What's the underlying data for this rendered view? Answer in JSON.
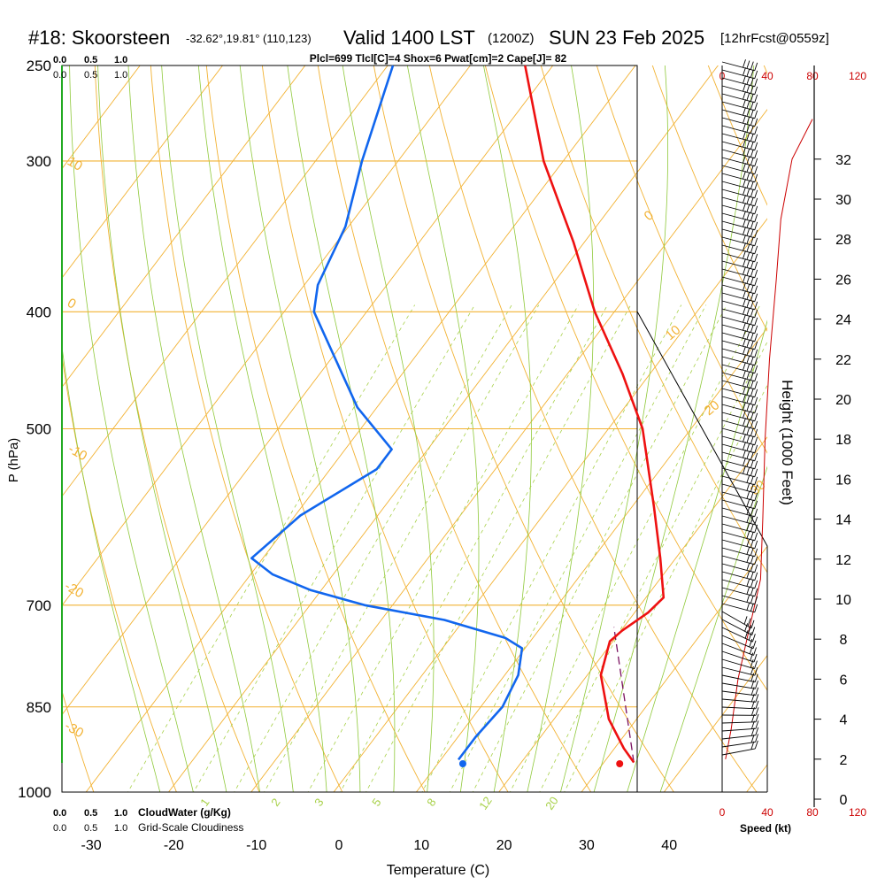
{
  "header": {
    "station": "#18: Skoorsteen",
    "coords": "-32.62°,19.81° (110,123)",
    "valid": "Valid 1400 LST",
    "zulu": "(1200Z)",
    "date": "SUN 23 Feb 2025",
    "fcst": "[12hrFcst@0559z]",
    "params": "Plcl=699 Tlcl[C]=4 Shox=6 Pwat[cm]=2 Cape[J]= 82"
  },
  "cloud_scale_top": {
    "green": [
      "0.0",
      "0.5",
      "1.0"
    ],
    "black": [
      "0.0",
      "0.5",
      "1.0"
    ]
  },
  "cloud_scale_bottom": {
    "green": [
      "0.0",
      "0.5",
      "1.0"
    ],
    "green_label": "CloudWater (g/Kg)",
    "black": [
      "0.0",
      "0.5",
      "1.0"
    ],
    "black_label": "Grid-Scale Cloudiness"
  },
  "colors": {
    "isotherm": "#f2b233",
    "dry_adiabat": "#f2b233",
    "moist_adiabat": "#8fc93a",
    "mixing_ratio": "#a8d14a",
    "temperature": "#ee1111",
    "dewpoint": "#1166ee",
    "parcel": "#7a1060",
    "cloud": "#22aa22",
    "speed": "#cc0000",
    "params": "#880055"
  },
  "chart_data": {
    "type": "skew-t",
    "xlabel": "Temperature (C)",
    "ylabel": "P (hPa)",
    "x_ticks": [
      -30,
      -20,
      -10,
      0,
      10,
      20,
      30,
      40
    ],
    "p_levels": [
      250,
      300,
      400,
      500,
      700,
      850,
      1000
    ],
    "dry_adiabat_labels": [
      "10",
      "0",
      "-10",
      "-20",
      "-30",
      "0",
      "10",
      "20",
      "30"
    ],
    "mixing_ratio_labels": [
      "1",
      "2",
      "3",
      "5",
      "8",
      "12",
      "20"
    ],
    "temperature_profile": [
      {
        "p": 945,
        "t": 33
      },
      {
        "p": 920,
        "t": 30.5
      },
      {
        "p": 870,
        "t": 26
      },
      {
        "p": 800,
        "t": 21
      },
      {
        "p": 750,
        "t": 19
      },
      {
        "p": 735,
        "t": 19.5
      },
      {
        "p": 710,
        "t": 21
      },
      {
        "p": 690,
        "t": 21.5
      },
      {
        "p": 640,
        "t": 17.5
      },
      {
        "p": 580,
        "t": 12
      },
      {
        "p": 500,
        "t": 3.5
      },
      {
        "p": 450,
        "t": -4
      },
      {
        "p": 400,
        "t": -13
      },
      {
        "p": 350,
        "t": -22
      },
      {
        "p": 300,
        "t": -33
      },
      {
        "p": 250,
        "t": -44
      }
    ],
    "dewpoint_profile": [
      {
        "p": 940,
        "t": 11.5
      },
      {
        "p": 900,
        "t": 11.5
      },
      {
        "p": 850,
        "t": 12
      },
      {
        "p": 800,
        "t": 11
      },
      {
        "p": 760,
        "t": 9
      },
      {
        "p": 745,
        "t": 6
      },
      {
        "p": 720,
        "t": -3
      },
      {
        "p": 700,
        "t": -14
      },
      {
        "p": 680,
        "t": -22
      },
      {
        "p": 660,
        "t": -28
      },
      {
        "p": 640,
        "t": -32
      },
      {
        "p": 590,
        "t": -30
      },
      {
        "p": 540,
        "t": -25
      },
      {
        "p": 520,
        "t": -25
      },
      {
        "p": 480,
        "t": -33
      },
      {
        "p": 400,
        "t": -47
      },
      {
        "p": 380,
        "t": -49
      },
      {
        "p": 340,
        "t": -51
      },
      {
        "p": 300,
        "t": -55
      },
      {
        "p": 250,
        "t": -60
      }
    ],
    "parcel_path": [
      {
        "p": 945,
        "t": 33
      },
      {
        "p": 730,
        "t": 18.2
      }
    ],
    "surface_temperature": 34,
    "surface_dewpoint": 15,
    "speed_axis": {
      "label": "Speed (kt)",
      "ticks": [
        "0",
        "40",
        "80",
        "120"
      ]
    },
    "height_axis": {
      "label": "Height (1000 Feet)",
      "ticks": [
        0,
        2,
        4,
        6,
        8,
        10,
        12,
        14,
        16,
        18,
        20,
        22,
        24,
        26,
        28,
        30,
        32
      ]
    },
    "wind_speed_profile": [
      {
        "h": 2,
        "kt": 3
      },
      {
        "h": 3.5,
        "kt": 8
      },
      {
        "h": 6,
        "kt": 14
      },
      {
        "h": 8,
        "kt": 22
      },
      {
        "h": 10,
        "kt": 30
      },
      {
        "h": 11,
        "kt": 34
      },
      {
        "h": 14,
        "kt": 36
      },
      {
        "h": 18,
        "kt": 38
      },
      {
        "h": 22,
        "kt": 42
      },
      {
        "h": 26,
        "kt": 48
      },
      {
        "h": 29,
        "kt": 52
      },
      {
        "h": 32,
        "kt": 62
      },
      {
        "h": 34,
        "kt": 80
      }
    ]
  }
}
